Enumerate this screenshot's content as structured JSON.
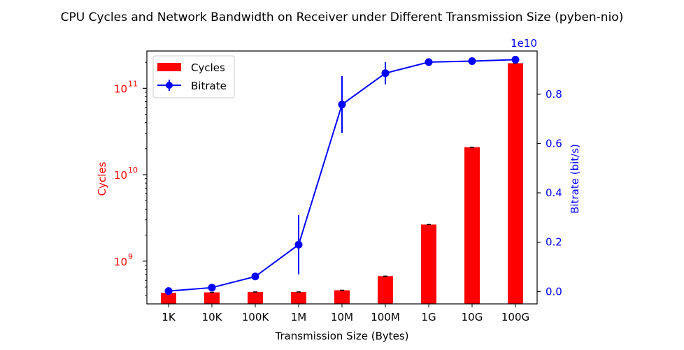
{
  "chart_data": {
    "type": "bar",
    "title": "CPU Cycles and Network Bandwidth on Receiver under Different Transmission Size (pyben-nio)",
    "xlabel": "Transmission Size (Bytes)",
    "categories": [
      "1K",
      "10K",
      "100K",
      "1M",
      "10M",
      "100M",
      "1G",
      "10G",
      "100G"
    ],
    "left_axis": {
      "label": "Cycles",
      "scale": "log",
      "range": [
        320000000,
        270000000000
      ],
      "ticks": [
        {
          "value": 1000000000,
          "base": "10",
          "exp": "9"
        },
        {
          "value": 10000000000,
          "base": "10",
          "exp": "10"
        },
        {
          "value": 100000000000,
          "base": "10",
          "exp": "11"
        }
      ],
      "color": "#ff0000"
    },
    "right_axis": {
      "label": "Bitrate (bit/s)",
      "scale": "linear",
      "range": [
        -0.05,
        0.975
      ],
      "offset_text": "1e10",
      "ticks": [
        "0.0",
        "0.2",
        "0.4",
        "0.6",
        "0.8"
      ],
      "color": "#0000ff"
    },
    "series": [
      {
        "name": "Cycles",
        "type": "bar",
        "axis": "left",
        "color": "#ff0000",
        "values": [
          430000000,
          435000000,
          440000000,
          440000000,
          460000000,
          670000000,
          2650000000,
          20800000000,
          195000000000
        ]
      },
      {
        "name": "Bitrate",
        "type": "line",
        "axis": "right",
        "unit_multiplier": "1e10",
        "color": "#0000ff",
        "values": [
          0.002,
          0.016,
          0.061,
          0.19,
          0.758,
          0.885,
          0.93,
          0.934,
          0.94
        ],
        "errors": [
          0.004,
          0.004,
          0.012,
          0.12,
          0.115,
          0.045,
          0.007,
          0.006,
          0.006
        ]
      }
    ],
    "legend": {
      "position": "top-left",
      "entries": [
        "Cycles",
        "Bitrate"
      ]
    },
    "grid": false
  }
}
